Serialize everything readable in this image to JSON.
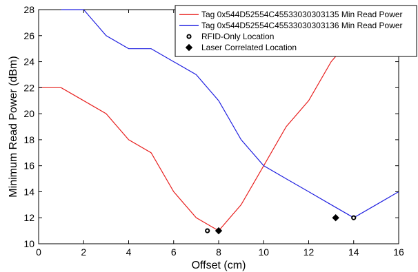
{
  "chart_data": {
    "type": "line",
    "title": "",
    "xlabel": "Offset (cm)",
    "ylabel": "Minimum Read Power (dBm)",
    "xlim": [
      0,
      16
    ],
    "ylim": [
      10,
      28
    ],
    "xticks": [
      0,
      2,
      4,
      6,
      8,
      10,
      12,
      14,
      16
    ],
    "yticks": [
      10,
      12,
      14,
      16,
      18,
      20,
      22,
      24,
      26,
      28
    ],
    "grid": false,
    "legend_position": "top-right",
    "series": [
      {
        "name": "Tag 0x544D52554C45533030303135 Min Read Power",
        "color": "#e8201f",
        "x": [
          0,
          1,
          2,
          3,
          4,
          5,
          6,
          7,
          8,
          9,
          10,
          11,
          12,
          13,
          13.5
        ],
        "y": [
          22,
          22,
          21,
          20,
          18,
          17,
          14,
          12,
          11,
          13,
          16,
          19,
          21,
          24,
          25
        ]
      },
      {
        "name": "Tag 0x544D52554C45533030303136 Min Read Power",
        "color": "#2020e0",
        "x": [
          1,
          2,
          3,
          4,
          5,
          6,
          7,
          8,
          9,
          10,
          11,
          12,
          13,
          14,
          15,
          16
        ],
        "y": [
          28,
          28,
          26,
          25,
          25,
          24,
          23,
          21,
          18,
          16,
          15,
          14,
          13,
          12,
          13,
          14
        ]
      }
    ],
    "markers": [
      {
        "name": "RFID-Only Location",
        "shape": "circle",
        "points": [
          [
            7.5,
            11
          ],
          [
            14,
            12
          ]
        ]
      },
      {
        "name": "Laser Correlated Location",
        "shape": "diamond",
        "points": [
          [
            8,
            11
          ],
          [
            13.2,
            12
          ]
        ]
      }
    ]
  }
}
